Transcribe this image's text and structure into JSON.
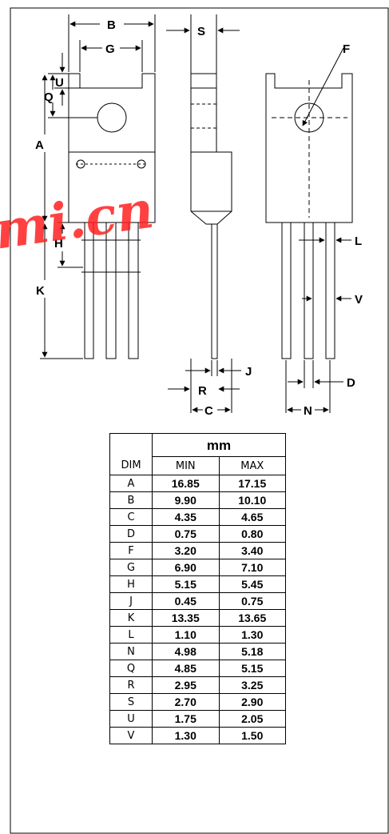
{
  "labels": {
    "B": "B",
    "G": "G",
    "S": "S",
    "U": "U",
    "Q": "Q",
    "A": "A",
    "H": "H",
    "K": "K",
    "F": "F",
    "L": "L",
    "V": "V",
    "J": "J",
    "R": "R",
    "C": "C",
    "D": "D",
    "N": "N"
  },
  "watermark": "mi.cn",
  "table": {
    "unit": "mm",
    "headers": {
      "dim": "DIM",
      "min": "MIN",
      "max": "MAX"
    },
    "rows": [
      {
        "dim": "A",
        "min": "16.85",
        "max": "17.15"
      },
      {
        "dim": "B",
        "min": "9.90",
        "max": "10.10"
      },
      {
        "dim": "C",
        "min": "4.35",
        "max": "4.65"
      },
      {
        "dim": "D",
        "min": "0.75",
        "max": "0.80"
      },
      {
        "dim": "F",
        "min": "3.20",
        "max": "3.40"
      },
      {
        "dim": "G",
        "min": "6.90",
        "max": "7.10"
      },
      {
        "dim": "H",
        "min": "5.15",
        "max": "5.45"
      },
      {
        "dim": "J",
        "min": "0.45",
        "max": "0.75"
      },
      {
        "dim": "K",
        "min": "13.35",
        "max": "13.65"
      },
      {
        "dim": "L",
        "min": "1.10",
        "max": "1.30"
      },
      {
        "dim": "N",
        "min": "4.98",
        "max": "5.18"
      },
      {
        "dim": "Q",
        "min": "4.85",
        "max": "5.15"
      },
      {
        "dim": "R",
        "min": "2.95",
        "max": "3.25"
      },
      {
        "dim": "S",
        "min": "2.70",
        "max": "2.90"
      },
      {
        "dim": "U",
        "min": "1.75",
        "max": "2.05"
      },
      {
        "dim": "V",
        "min": "1.30",
        "max": "1.50"
      }
    ]
  }
}
